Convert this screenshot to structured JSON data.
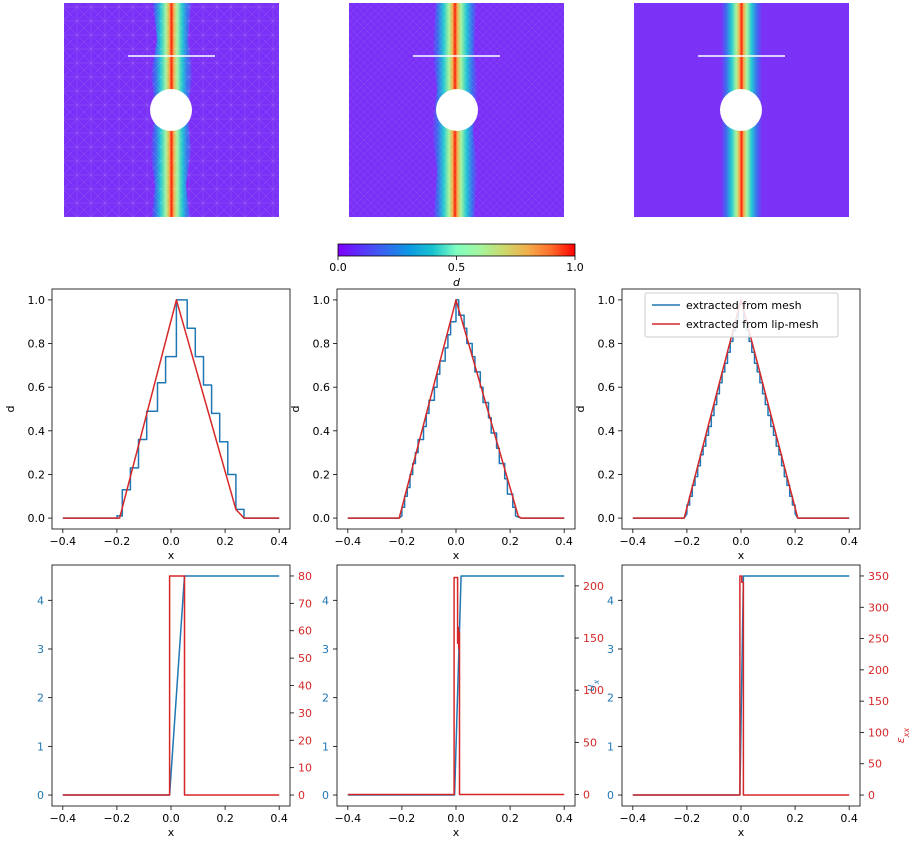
{
  "colorbar": {
    "label": "d",
    "ticks": [
      "0.0",
      "0.5",
      "1.0"
    ]
  },
  "legend": {
    "placement": "top-right",
    "entries": [
      "extracted from mesh",
      "extracted from lip-mesh"
    ]
  },
  "colors": {
    "blue": "#1f77b4",
    "red": "#d62728",
    "field_low": "#7a30f6"
  },
  "chart_data": [
    {
      "type": "line",
      "panel": "d-profile-1",
      "xlabel": "x",
      "ylabel": "d",
      "xlim": [
        -0.4,
        0.4
      ],
      "ylim": [
        0,
        1
      ],
      "xticks": [
        "−0.4",
        "−0.2",
        "0.0",
        "0.2",
        "0.4"
      ],
      "yticks": [
        "0.0",
        "0.2",
        "0.4",
        "0.6",
        "0.8",
        "1.0"
      ],
      "series": [
        {
          "name": "extracted from mesh",
          "color": "#1f77b4",
          "x": [
            -0.4,
            -0.2,
            -0.2,
            -0.18,
            -0.18,
            -0.15,
            -0.15,
            -0.12,
            -0.12,
            -0.09,
            -0.09,
            -0.05,
            -0.05,
            -0.02,
            -0.02,
            0.02,
            0.02,
            0.06,
            0.06,
            0.09,
            0.09,
            0.12,
            0.12,
            0.15,
            0.15,
            0.18,
            0.18,
            0.21,
            0.21,
            0.24,
            0.24,
            0.27,
            0.27,
            0.4
          ],
          "y": [
            0,
            0,
            0.01,
            0.01,
            0.13,
            0.13,
            0.23,
            0.23,
            0.36,
            0.36,
            0.49,
            0.49,
            0.62,
            0.62,
            0.74,
            0.74,
            1.0,
            1.0,
            0.87,
            0.87,
            0.74,
            0.74,
            0.61,
            0.61,
            0.48,
            0.48,
            0.35,
            0.35,
            0.2,
            0.2,
            0.04,
            0.04,
            0,
            0
          ]
        },
        {
          "name": "extracted from lip-mesh",
          "color": "#d62728",
          "x": [
            -0.4,
            -0.19,
            0.02,
            0.24,
            0.27,
            0.4
          ],
          "y": [
            0,
            0,
            1.0,
            0.04,
            0,
            0
          ]
        }
      ]
    },
    {
      "type": "line",
      "panel": "d-profile-2",
      "xlabel": "x",
      "ylabel": "d",
      "xlim": [
        -0.4,
        0.4
      ],
      "ylim": [
        0,
        1
      ],
      "xticks": [
        "−0.4",
        "−0.2",
        "0.0",
        "0.2",
        "0.4"
      ],
      "yticks": [
        "0.0",
        "0.2",
        "0.4",
        "0.6",
        "0.8",
        "1.0"
      ],
      "series": [
        {
          "name": "extracted from mesh",
          "color": "#1f77b4",
          "x": [
            -0.4,
            -0.21,
            -0.2,
            -0.2,
            -0.19,
            -0.19,
            -0.18,
            -0.18,
            -0.17,
            -0.17,
            -0.16,
            -0.16,
            -0.15,
            -0.15,
            -0.14,
            -0.14,
            -0.12,
            -0.12,
            -0.11,
            -0.11,
            -0.1,
            -0.1,
            -0.08,
            -0.08,
            -0.07,
            -0.07,
            -0.06,
            -0.06,
            -0.04,
            -0.04,
            -0.03,
            -0.03,
            -0.02,
            -0.02,
            0,
            0,
            0.01,
            0.01,
            0.03,
            0.03,
            0.04,
            0.04,
            0.06,
            0.06,
            0.07,
            0.07,
            0.09,
            0.09,
            0.1,
            0.1,
            0.12,
            0.12,
            0.13,
            0.13,
            0.15,
            0.15,
            0.16,
            0.16,
            0.18,
            0.18,
            0.19,
            0.19,
            0.21,
            0.21,
            0.22,
            0.22,
            0.24,
            0.4
          ],
          "y": [
            0,
            0,
            0.01,
            0.05,
            0.05,
            0.1,
            0.1,
            0.14,
            0.14,
            0.2,
            0.2,
            0.25,
            0.25,
            0.3,
            0.3,
            0.36,
            0.36,
            0.42,
            0.42,
            0.48,
            0.48,
            0.54,
            0.54,
            0.6,
            0.6,
            0.66,
            0.66,
            0.72,
            0.72,
            0.78,
            0.78,
            0.84,
            0.84,
            0.9,
            0.9,
            1.0,
            1.0,
            0.93,
            0.93,
            0.87,
            0.87,
            0.8,
            0.8,
            0.74,
            0.74,
            0.67,
            0.67,
            0.6,
            0.6,
            0.53,
            0.53,
            0.46,
            0.46,
            0.39,
            0.39,
            0.32,
            0.32,
            0.25,
            0.25,
            0.18,
            0.18,
            0.11,
            0.11,
            0.05,
            0.05,
            0.01,
            0,
            0
          ]
        },
        {
          "name": "extracted from lip-mesh",
          "color": "#d62728",
          "x": [
            -0.4,
            -0.21,
            0.0,
            0.23,
            0.24,
            0.4
          ],
          "y": [
            0,
            0,
            1.0,
            0.01,
            0,
            0
          ]
        }
      ]
    },
    {
      "type": "line",
      "panel": "d-profile-3",
      "xlabel": "x",
      "ylabel": "d",
      "xlim": [
        -0.4,
        0.4
      ],
      "ylim": [
        0,
        1
      ],
      "xticks": [
        "−0.4",
        "−0.2",
        "0.0",
        "0.2",
        "0.4"
      ],
      "yticks": [
        "0.0",
        "0.2",
        "0.4",
        "0.6",
        "0.8",
        "1.0"
      ],
      "series": [
        {
          "name": "extracted from mesh",
          "color": "#1f77b4",
          "x": [
            -0.4,
            -0.21,
            -0.2,
            -0.2,
            -0.19,
            -0.19,
            -0.18,
            -0.18,
            -0.17,
            -0.17,
            -0.16,
            -0.16,
            -0.15,
            -0.15,
            -0.14,
            -0.14,
            -0.13,
            -0.13,
            -0.12,
            -0.12,
            -0.11,
            -0.11,
            -0.1,
            -0.1,
            -0.09,
            -0.09,
            -0.08,
            -0.08,
            -0.07,
            -0.07,
            -0.06,
            -0.06,
            -0.05,
            -0.05,
            -0.04,
            -0.04,
            -0.03,
            -0.03,
            -0.02,
            -0.02,
            -0.01,
            -0.01,
            0.01,
            0.01,
            0.02,
            0.02,
            0.03,
            0.03,
            0.04,
            0.04,
            0.05,
            0.05,
            0.06,
            0.06,
            0.07,
            0.07,
            0.08,
            0.08,
            0.09,
            0.09,
            0.1,
            0.1,
            0.11,
            0.11,
            0.12,
            0.12,
            0.13,
            0.13,
            0.14,
            0.14,
            0.15,
            0.15,
            0.16,
            0.16,
            0.17,
            0.17,
            0.18,
            0.18,
            0.19,
            0.19,
            0.2,
            0.2,
            0.21,
            0.4
          ],
          "y": [
            0,
            0,
            0.02,
            0.06,
            0.06,
            0.1,
            0.1,
            0.15,
            0.15,
            0.19,
            0.19,
            0.24,
            0.24,
            0.29,
            0.29,
            0.33,
            0.33,
            0.38,
            0.38,
            0.42,
            0.42,
            0.47,
            0.47,
            0.52,
            0.52,
            0.57,
            0.57,
            0.62,
            0.62,
            0.67,
            0.67,
            0.71,
            0.71,
            0.76,
            0.76,
            0.81,
            0.81,
            0.86,
            0.86,
            0.9,
            0.9,
            0.98,
            0.98,
            0.9,
            0.9,
            0.86,
            0.86,
            0.81,
            0.81,
            0.76,
            0.76,
            0.71,
            0.71,
            0.67,
            0.67,
            0.62,
            0.62,
            0.57,
            0.57,
            0.52,
            0.52,
            0.47,
            0.47,
            0.42,
            0.42,
            0.38,
            0.38,
            0.33,
            0.33,
            0.29,
            0.29,
            0.24,
            0.24,
            0.19,
            0.19,
            0.15,
            0.15,
            0.1,
            0.1,
            0.06,
            0.06,
            0.02,
            0,
            0
          ]
        },
        {
          "name": "extracted from lip-mesh",
          "color": "#d62728",
          "x": [
            -0.4,
            -0.21,
            0.0,
            0.21,
            0.4
          ],
          "y": [
            0,
            0,
            1.0,
            0,
            0
          ]
        }
      ]
    },
    {
      "type": "line",
      "panel": "u-eps-1",
      "xlabel": "x",
      "ylabel": "",
      "ylabel_right": "",
      "xlim": [
        -0.4,
        0.4
      ],
      "ylim_left": [
        0,
        4.5
      ],
      "ylim_right": [
        0,
        80
      ],
      "xticks": [
        "−0.4",
        "−0.2",
        "0.0",
        "0.2",
        "0.4"
      ],
      "yticks_left": [
        "0",
        "1",
        "2",
        "3",
        "4"
      ],
      "yticks_right": [
        "0",
        "10",
        "20",
        "30",
        "40",
        "50",
        "60",
        "70",
        "80"
      ],
      "series": [
        {
          "axis": "left",
          "color": "#1f77b4",
          "x": [
            -0.4,
            -0.005,
            0.05,
            0.4
          ],
          "y": [
            0,
            0,
            4.5,
            4.5
          ]
        },
        {
          "axis": "right",
          "color": "#d62728",
          "x": [
            -0.4,
            -0.005,
            -0.005,
            0.05,
            0.05,
            0.4
          ],
          "y": [
            0,
            0,
            80,
            80,
            0,
            0
          ]
        }
      ]
    },
    {
      "type": "line",
      "panel": "u-eps-2",
      "xlabel": "x",
      "ylabel": "",
      "ylabel_right": "",
      "xlim": [
        -0.4,
        0.4
      ],
      "ylim_left": [
        0,
        4.5
      ],
      "ylim_right": [
        0,
        200
      ],
      "xticks": [
        "−0.4",
        "−0.2",
        "0.0",
        "0.2",
        "0.4"
      ],
      "yticks_left": [
        "0",
        "1",
        "2",
        "3",
        "4"
      ],
      "yticks_right": [
        "0",
        "50",
        "100",
        "150",
        "200"
      ],
      "series": [
        {
          "axis": "left",
          "color": "#1f77b4",
          "x": [
            -0.4,
            -0.005,
            0.019,
            0.4
          ],
          "y": [
            0,
            0,
            4.5,
            4.5
          ]
        },
        {
          "axis": "right",
          "color": "#d62728",
          "x": [
            -0.4,
            -0.007,
            -0.007,
            0.006,
            0.006,
            0.008,
            0.008,
            0.01,
            0.01,
            0.011,
            0.011,
            0.013,
            0.013,
            0.02,
            0.02,
            0.4
          ],
          "y": [
            0,
            0,
            208,
            208,
            145,
            145,
            160,
            160,
            140,
            140,
            155,
            155,
            0,
            0,
            0,
            0
          ]
        }
      ]
    },
    {
      "type": "line",
      "panel": "u-eps-3",
      "xlabel": "x",
      "ylabel": "u_x",
      "ylabel_right": "ε_xx",
      "xlim": [
        -0.4,
        0.4
      ],
      "ylim_left": [
        0,
        4.5
      ],
      "ylim_right": [
        0,
        350
      ],
      "xticks": [
        "−0.4",
        "−0.2",
        "0.0",
        "0.2",
        "0.4"
      ],
      "yticks_left": [
        "0",
        "1",
        "2",
        "3",
        "4"
      ],
      "yticks_right": [
        "0",
        "50",
        "100",
        "150",
        "200",
        "250",
        "300",
        "350"
      ],
      "series": [
        {
          "axis": "left",
          "color": "#1f77b4",
          "x": [
            -0.4,
            -0.004,
            0.009,
            0.4
          ],
          "y": [
            0,
            0,
            4.5,
            4.5
          ]
        },
        {
          "axis": "right",
          "color": "#d62728",
          "x": [
            -0.4,
            -0.004,
            -0.004,
            0.003,
            0.003,
            0.009,
            0.009,
            0.4
          ],
          "y": [
            0,
            0,
            350,
            350,
            340,
            340,
            0,
            0
          ]
        }
      ]
    }
  ]
}
